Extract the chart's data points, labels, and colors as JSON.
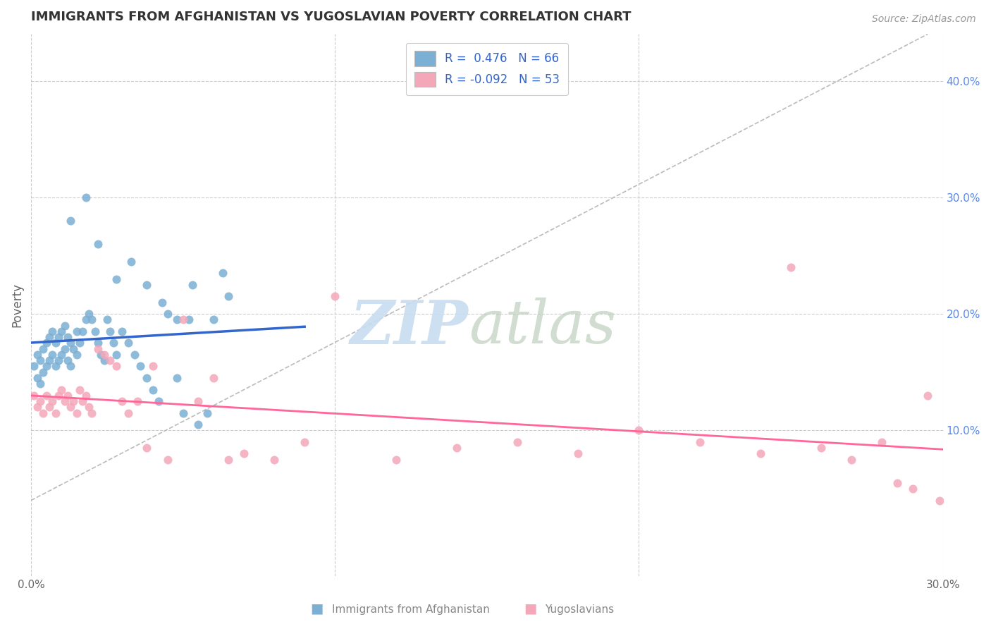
{
  "title": "IMMIGRANTS FROM AFGHANISTAN VS YUGOSLAVIAN POVERTY CORRELATION CHART",
  "source": "Source: ZipAtlas.com",
  "ylabel": "Poverty",
  "color_afghan": "#7BAFD4",
  "color_yugoslav": "#F4A7B9",
  "regression_color_afghan": "#3366CC",
  "regression_color_yugoslav": "#FF6699",
  "regression_dashed_color": "#BBBBBB",
  "background_color": "#FFFFFF",
  "grid_color": "#CCCCCC",
  "xlim": [
    0.0,
    0.3
  ],
  "ylim": [
    -0.025,
    0.44
  ],
  "right_ytick_vals": [
    0.1,
    0.2,
    0.3,
    0.4
  ],
  "right_ytick_labels": [
    "10.0%",
    "20.0%",
    "30.0%",
    "40.0%"
  ],
  "xtick_vals": [
    0.0,
    0.1,
    0.2,
    0.3
  ],
  "xtick_labels": [
    "0.0%",
    "",
    "",
    "30.0%"
  ],
  "legend_label1": "R =  0.476   N = 66",
  "legend_label2": "R = -0.092   N = 53",
  "bottom_legend1": "Immigrants from Afghanistan",
  "bottom_legend2": "Yugoslavians",
  "afghan_scatter_x": [
    0.001,
    0.002,
    0.002,
    0.003,
    0.003,
    0.004,
    0.004,
    0.005,
    0.005,
    0.006,
    0.006,
    0.007,
    0.007,
    0.008,
    0.008,
    0.009,
    0.009,
    0.01,
    0.01,
    0.011,
    0.011,
    0.012,
    0.012,
    0.013,
    0.013,
    0.014,
    0.015,
    0.015,
    0.016,
    0.017,
    0.018,
    0.019,
    0.02,
    0.021,
    0.022,
    0.023,
    0.024,
    0.025,
    0.026,
    0.027,
    0.028,
    0.03,
    0.032,
    0.034,
    0.036,
    0.038,
    0.04,
    0.042,
    0.045,
    0.048,
    0.05,
    0.052,
    0.055,
    0.058,
    0.06,
    0.065,
    0.013,
    0.018,
    0.022,
    0.028,
    0.033,
    0.038,
    0.043,
    0.048,
    0.053,
    0.063
  ],
  "afghan_scatter_y": [
    0.155,
    0.145,
    0.165,
    0.14,
    0.16,
    0.17,
    0.15,
    0.175,
    0.155,
    0.18,
    0.16,
    0.185,
    0.165,
    0.175,
    0.155,
    0.18,
    0.16,
    0.185,
    0.165,
    0.19,
    0.17,
    0.18,
    0.16,
    0.175,
    0.155,
    0.17,
    0.185,
    0.165,
    0.175,
    0.185,
    0.195,
    0.2,
    0.195,
    0.185,
    0.175,
    0.165,
    0.16,
    0.195,
    0.185,
    0.175,
    0.165,
    0.185,
    0.175,
    0.165,
    0.155,
    0.145,
    0.135,
    0.125,
    0.2,
    0.145,
    0.115,
    0.195,
    0.105,
    0.115,
    0.195,
    0.215,
    0.28,
    0.3,
    0.26,
    0.23,
    0.245,
    0.225,
    0.21,
    0.195,
    0.225,
    0.235
  ],
  "yugoslav_scatter_x": [
    0.001,
    0.002,
    0.003,
    0.004,
    0.005,
    0.006,
    0.007,
    0.008,
    0.009,
    0.01,
    0.011,
    0.012,
    0.013,
    0.014,
    0.015,
    0.016,
    0.017,
    0.018,
    0.019,
    0.02,
    0.022,
    0.024,
    0.026,
    0.028,
    0.03,
    0.032,
    0.035,
    0.038,
    0.04,
    0.045,
    0.05,
    0.055,
    0.06,
    0.065,
    0.07,
    0.08,
    0.09,
    0.1,
    0.12,
    0.14,
    0.16,
    0.18,
    0.2,
    0.22,
    0.24,
    0.25,
    0.26,
    0.27,
    0.28,
    0.285,
    0.29,
    0.295,
    0.299
  ],
  "yugoslav_scatter_y": [
    0.13,
    0.12,
    0.125,
    0.115,
    0.13,
    0.12,
    0.125,
    0.115,
    0.13,
    0.135,
    0.125,
    0.13,
    0.12,
    0.125,
    0.115,
    0.135,
    0.125,
    0.13,
    0.12,
    0.115,
    0.17,
    0.165,
    0.16,
    0.155,
    0.125,
    0.115,
    0.125,
    0.085,
    0.155,
    0.075,
    0.195,
    0.125,
    0.145,
    0.075,
    0.08,
    0.075,
    0.09,
    0.215,
    0.075,
    0.085,
    0.09,
    0.08,
    0.1,
    0.09,
    0.08,
    0.24,
    0.085,
    0.075,
    0.09,
    0.055,
    0.05,
    0.13,
    0.04
  ]
}
